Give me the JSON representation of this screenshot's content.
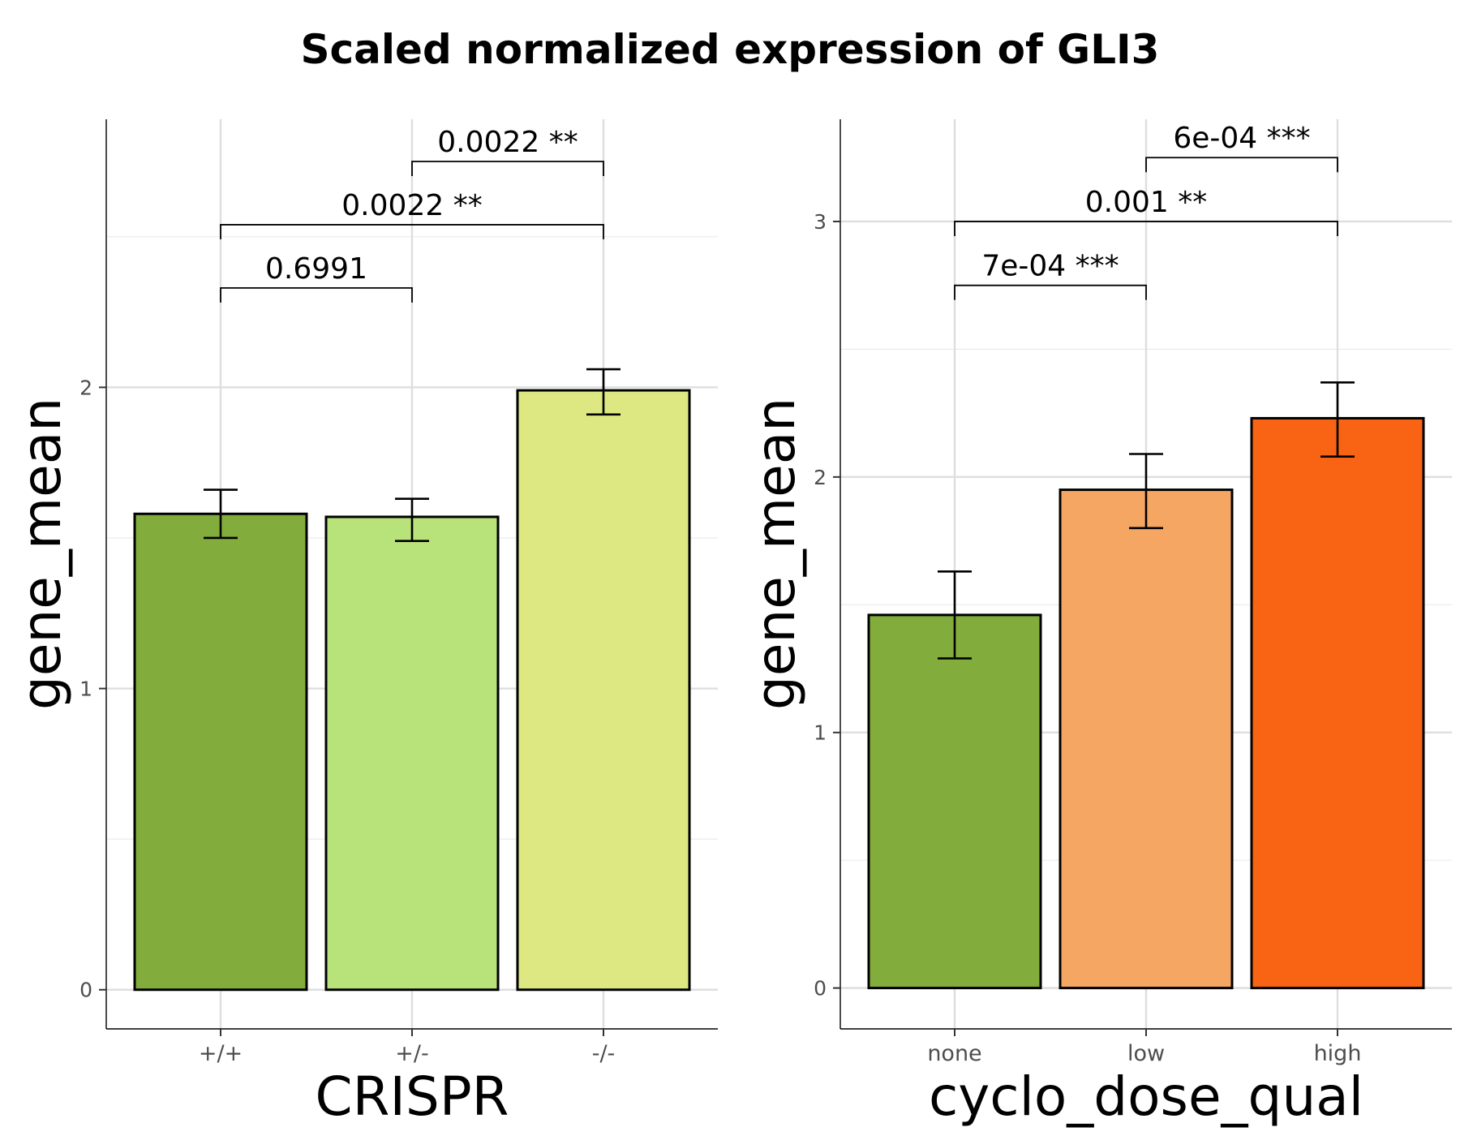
{
  "title": "Scaled normalized expression of GLI3",
  "chart_data": [
    {
      "type": "bar",
      "xlabel": "CRISPR",
      "ylabel": "gene_mean",
      "categories": [
        "+/+",
        "+/-",
        "-/-"
      ],
      "values": [
        1.58,
        1.57,
        1.99
      ],
      "error_low": [
        1.5,
        1.49,
        1.91
      ],
      "error_high": [
        1.66,
        1.63,
        2.06
      ],
      "colors": [
        "#82AD3C",
        "#B8E27A",
        "#DDE882"
      ],
      "ylim": [
        -0.13,
        2.89
      ],
      "yticks": [
        0,
        1,
        2
      ],
      "minor_yticks": [
        0.5,
        1.5,
        2.5
      ],
      "grid": true,
      "comparisons": [
        {
          "from": 0,
          "to": 1,
          "y": 2.33,
          "label": "0.6991"
        },
        {
          "from": 0,
          "to": 2,
          "y": 2.54,
          "label": "0.0022 **"
        },
        {
          "from": 1,
          "to": 2,
          "y": 2.75,
          "label": "0.0022 **"
        }
      ]
    },
    {
      "type": "bar",
      "xlabel": "cyclo_dose_qual",
      "ylabel": "gene_mean",
      "categories": [
        "none",
        "low",
        "high"
      ],
      "values": [
        1.46,
        1.95,
        2.23
      ],
      "error_low": [
        1.29,
        1.8,
        2.08
      ],
      "error_high": [
        1.63,
        2.09,
        2.37
      ],
      "colors": [
        "#82AD3C",
        "#F5A663",
        "#F86413"
      ],
      "ylim": [
        -0.16,
        3.4
      ],
      "yticks": [
        0,
        1,
        2,
        3
      ],
      "minor_yticks": [
        0.5,
        1.5,
        2.5
      ],
      "grid": true,
      "comparisons": [
        {
          "from": 0,
          "to": 1,
          "y": 2.75,
          "label": "7e-04 ***"
        },
        {
          "from": 0,
          "to": 2,
          "y": 3.0,
          "label": "0.001 **"
        },
        {
          "from": 1,
          "to": 2,
          "y": 3.25,
          "label": "6e-04 ***"
        }
      ]
    }
  ]
}
